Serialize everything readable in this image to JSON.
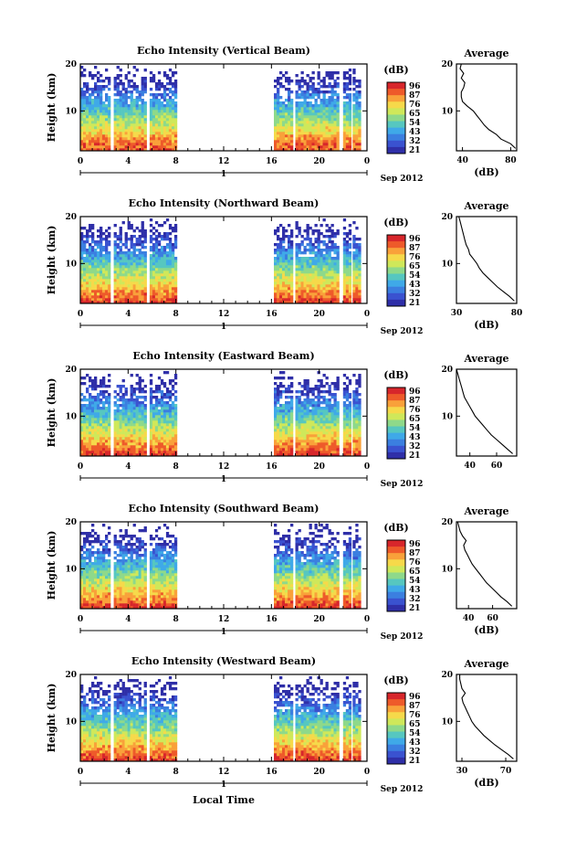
{
  "figure": {
    "bottom_xlabel": "Local Time",
    "month_label": "Sep 2012",
    "day_label": "1"
  },
  "colorscale": {
    "unit": "(dB)",
    "ticks": [
      "96",
      "87",
      "76",
      "65",
      "54",
      "43",
      "32",
      "21"
    ],
    "colors": [
      "#d7262b",
      "#ee5a2a",
      "#f9a13a",
      "#f6d94a",
      "#cfe85a",
      "#8ed98a",
      "#56c7c0",
      "#3fa9e8",
      "#3b7fe0",
      "#3a52d0",
      "#2f2fa8"
    ]
  },
  "chart_data": [
    {
      "type": "heatmap",
      "title": "Echo Intensity (Vertical Beam)",
      "ylabel": "Height (km)",
      "xlim": [
        0,
        24
      ],
      "ylim": [
        1.5,
        20
      ],
      "x_ticks": [
        "0",
        "4",
        "8",
        "12",
        "16",
        "20",
        "0"
      ],
      "y_ticks": [
        "10",
        "20"
      ],
      "data_segments_hours": [
        [
          0,
          2.3
        ],
        [
          2.8,
          5.5
        ],
        [
          5.8,
          8
        ],
        [
          16.2,
          17.8
        ],
        [
          18.0,
          21.6
        ],
        [
          22.0,
          22.6
        ],
        [
          22.8,
          23.3
        ]
      ],
      "profile": {
        "title": "Average",
        "xlabel": "(dB)",
        "xlim": [
          35,
          85
        ],
        "x_ticks": [
          "40",
          "80"
        ],
        "y_ticks": [
          "10",
          "20"
        ],
        "height_km": [
          2,
          3,
          4,
          5,
          6,
          7,
          8,
          9,
          10,
          11,
          12,
          13,
          14,
          15,
          16,
          17,
          18,
          19,
          20
        ],
        "db": [
          84,
          80,
          72,
          68,
          62,
          58,
          55,
          52,
          49,
          44,
          40,
          39,
          39,
          41,
          42,
          39,
          41,
          38,
          39
        ]
      }
    },
    {
      "type": "heatmap",
      "title": "Echo Intensity (Northward Beam)",
      "ylabel": "Height (km)",
      "xlim": [
        0,
        24
      ],
      "ylim": [
        1.5,
        20
      ],
      "x_ticks": [
        "0",
        "4",
        "8",
        "12",
        "16",
        "20",
        "0"
      ],
      "y_ticks": [
        "10",
        "20"
      ],
      "data_segments_hours": [
        [
          0,
          2.3
        ],
        [
          2.8,
          5.5
        ],
        [
          5.8,
          8
        ],
        [
          16.2,
          17.8
        ],
        [
          18.0,
          21.6
        ],
        [
          22.0,
          22.6
        ],
        [
          22.8,
          23.3
        ]
      ],
      "profile": {
        "title": "Average",
        "xlabel": "(dB)",
        "xlim": [
          30,
          80
        ],
        "x_ticks": [
          "30",
          "80"
        ],
        "y_ticks": [
          "10",
          "20"
        ],
        "height_km": [
          2,
          3,
          4,
          5,
          6,
          7,
          8,
          9,
          10,
          11,
          12,
          13,
          14,
          15,
          16,
          17,
          18,
          19,
          20
        ],
        "db": [
          78,
          74,
          69,
          64,
          60,
          56,
          52,
          49,
          47,
          44,
          41,
          40,
          38,
          37,
          36,
          35,
          34,
          33,
          32
        ]
      }
    },
    {
      "type": "heatmap",
      "title": "Echo Intensity (Eastward Beam)",
      "ylabel": "Height (km)",
      "xlim": [
        0,
        24
      ],
      "ylim": [
        1.5,
        20
      ],
      "x_ticks": [
        "0",
        "4",
        "8",
        "12",
        "16",
        "20",
        "0"
      ],
      "y_ticks": [
        "10",
        "20"
      ],
      "data_segments_hours": [
        [
          0,
          2.3
        ],
        [
          2.8,
          5.5
        ],
        [
          5.8,
          8
        ],
        [
          16.2,
          17.8
        ],
        [
          18.0,
          21.6
        ],
        [
          22.0,
          22.6
        ],
        [
          22.8,
          23.3
        ]
      ],
      "profile": {
        "title": "Average",
        "xlabel": "",
        "xlim": [
          30,
          75
        ],
        "x_ticks": [
          "40",
          "60"
        ],
        "y_ticks": [
          "10",
          "20"
        ],
        "height_km": [
          2,
          3,
          4,
          5,
          6,
          7,
          8,
          9,
          10,
          11,
          12,
          13,
          14,
          15,
          16,
          17,
          18,
          19,
          20
        ],
        "db": [
          72,
          68,
          64,
          60,
          56,
          53,
          50,
          47,
          44,
          42,
          40,
          38,
          36,
          35,
          34,
          33,
          32,
          31,
          30
        ]
      }
    },
    {
      "type": "heatmap",
      "title": "Echo Intensity (Southward Beam)",
      "ylabel": "Height (km)",
      "xlim": [
        0,
        24
      ],
      "ylim": [
        1.5,
        20
      ],
      "x_ticks": [
        "0",
        "4",
        "8",
        "12",
        "16",
        "20",
        "0"
      ],
      "y_ticks": [
        "10",
        "20"
      ],
      "data_segments_hours": [
        [
          0,
          2.3
        ],
        [
          2.8,
          5.5
        ],
        [
          5.8,
          8
        ],
        [
          16.2,
          17.8
        ],
        [
          18.0,
          21.6
        ],
        [
          22.0,
          22.6
        ],
        [
          22.8,
          23.3
        ]
      ],
      "profile": {
        "title": "Average",
        "xlabel": "(dB)",
        "xlim": [
          30,
          80
        ],
        "x_ticks": [
          "40",
          "60"
        ],
        "y_ticks": [
          "10",
          "20"
        ],
        "height_km": [
          2,
          3,
          4,
          5,
          6,
          7,
          8,
          9,
          10,
          11,
          12,
          13,
          14,
          15,
          16,
          17,
          18,
          19,
          20
        ],
        "db": [
          76,
          72,
          67,
          63,
          59,
          55,
          52,
          49,
          46,
          43,
          41,
          39,
          37,
          36,
          38,
          35,
          33,
          32,
          31
        ]
      }
    },
    {
      "type": "heatmap",
      "title": "Echo Intensity (Westward Beam)",
      "ylabel": "Height (km)",
      "xlim": [
        0,
        24
      ],
      "ylim": [
        1.5,
        20
      ],
      "x_ticks": [
        "0",
        "4",
        "8",
        "12",
        "16",
        "20",
        "0"
      ],
      "y_ticks": [
        "10",
        "20"
      ],
      "data_segments_hours": [
        [
          0,
          2.3
        ],
        [
          2.8,
          5.5
        ],
        [
          5.8,
          8
        ],
        [
          16.2,
          17.8
        ],
        [
          18.0,
          21.6
        ],
        [
          22.0,
          22.6
        ],
        [
          22.8,
          23.3
        ]
      ],
      "profile": {
        "title": "Average",
        "xlabel": "(dB)",
        "xlim": [
          25,
          80
        ],
        "x_ticks": [
          "30",
          "70"
        ],
        "y_ticks": [
          "10",
          "20"
        ],
        "height_km": [
          2,
          3,
          4,
          5,
          6,
          7,
          8,
          9,
          10,
          11,
          12,
          13,
          14,
          15,
          16,
          17,
          18,
          19,
          20
        ],
        "db": [
          77,
          72,
          66,
          60,
          55,
          50,
          46,
          42,
          39,
          37,
          35,
          33,
          31,
          30,
          33,
          30,
          29,
          28,
          28
        ]
      }
    }
  ]
}
